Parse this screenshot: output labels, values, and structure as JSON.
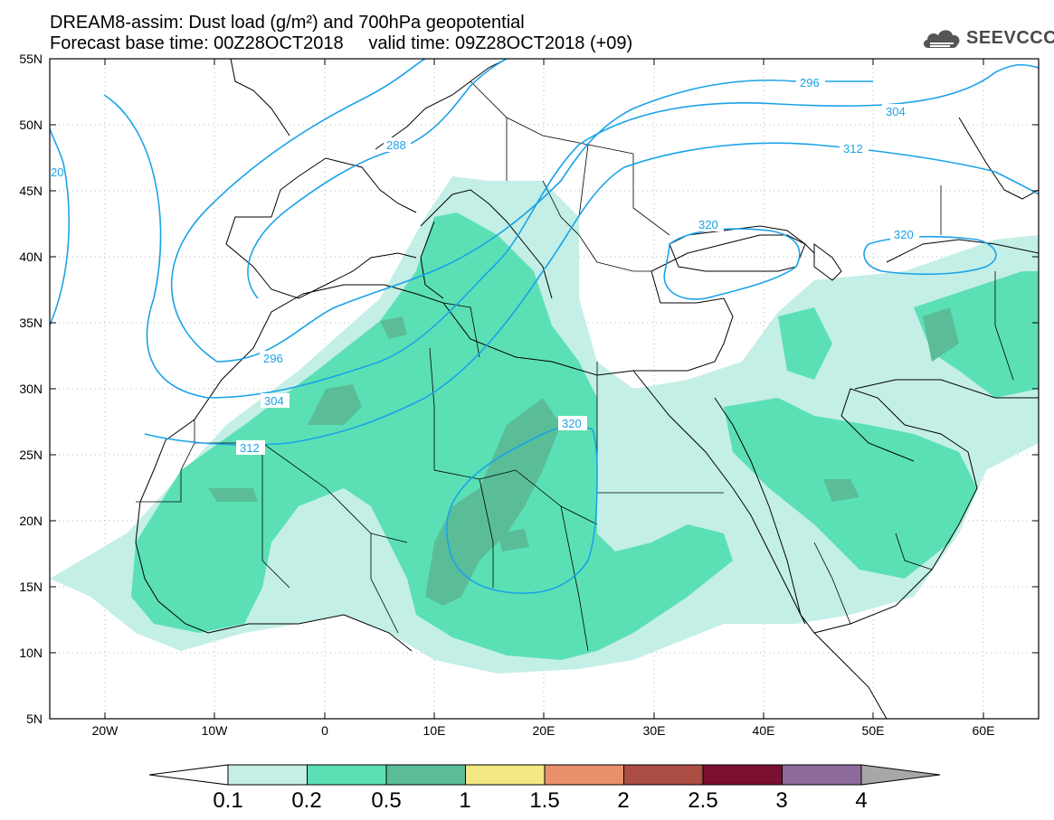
{
  "header": {
    "title_line1": "DREAM8-assim: Dust load (g/m²) and 700hPa geopotential",
    "title_line2": "Forecast base time: 00Z28OCT2018     valid time: 09Z28OCT2018 (+09)",
    "logo_text": "SEEVCCC"
  },
  "axes": {
    "lat_labels": [
      "55N",
      "50N",
      "45N",
      "40N",
      "35N",
      "30N",
      "25N",
      "20N",
      "15N",
      "10N",
      "5N"
    ],
    "lon_labels": [
      "20W",
      "10W",
      "0",
      "10E",
      "20E",
      "30E",
      "40E",
      "50E",
      "60E"
    ]
  },
  "contour_labels": [
    "296",
    "304",
    "288",
    "312",
    "320",
    "320",
    "296",
    "304",
    "312",
    "320",
    "20"
  ],
  "colorbar": {
    "labels": [
      "0.1",
      "0.2",
      "0.5",
      "1",
      "1.5",
      "2",
      "2.5",
      "3",
      "4"
    ],
    "colors": [
      "#c3efe6",
      "#5be0b5",
      "#5abd98",
      "#f3e883",
      "#e9906c",
      "#ab4d42",
      "#7b0f2f",
      "#8c6b9c",
      "#a7a7a7"
    ]
  },
  "colors": {
    "contour": "#1aa3e8",
    "dust_low": "#c3efe6",
    "dust_mid": "#5be0b5",
    "dust_high": "#5abd98"
  }
}
